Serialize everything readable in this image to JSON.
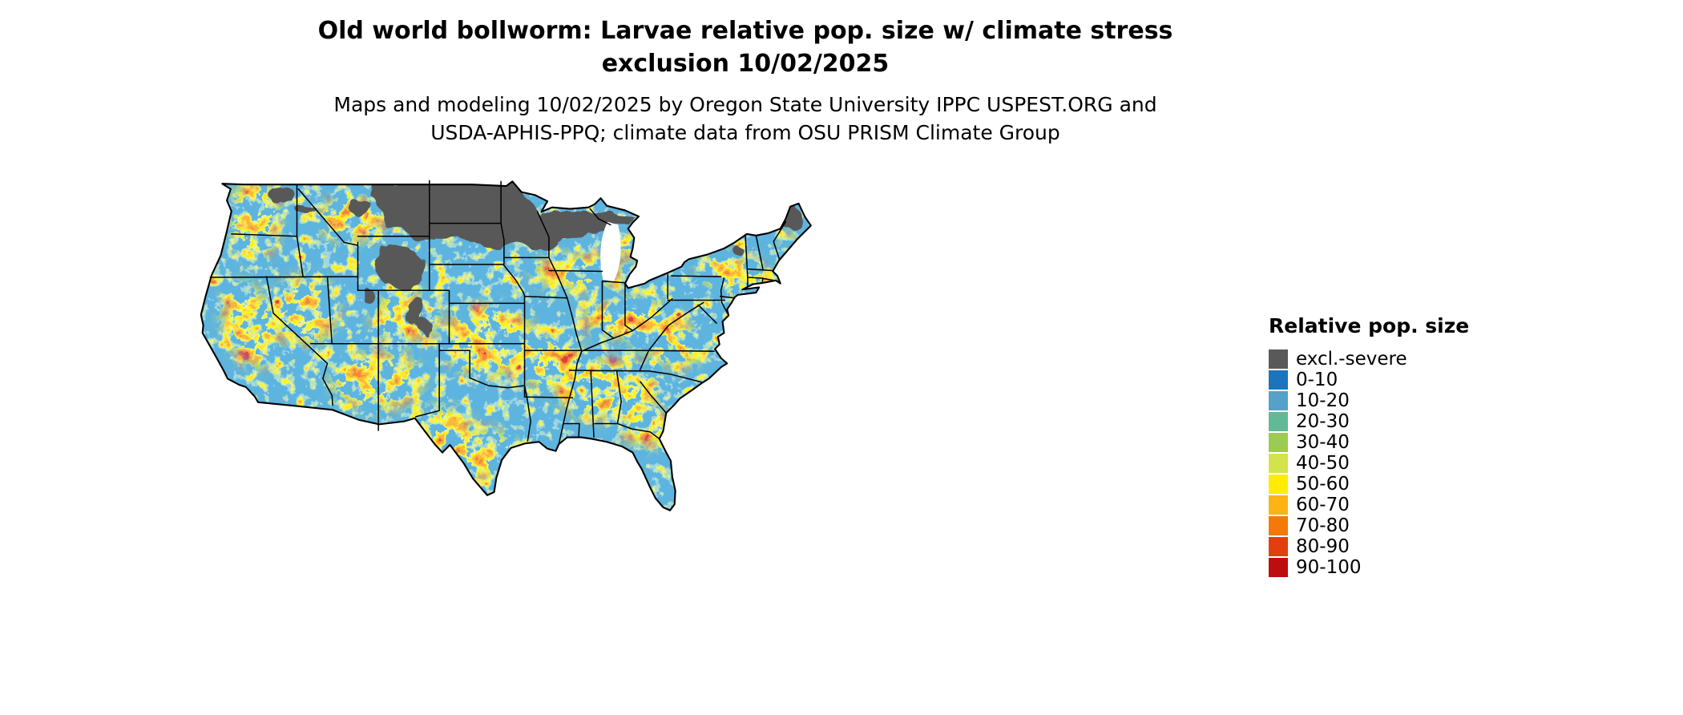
{
  "page": {
    "background": "#ffffff"
  },
  "header": {
    "title_line1": "Old world bollworm: Larvae relative pop. size w/ climate stress",
    "title_line2": "exclusion 10/02/2025",
    "subtitle_line1": "Maps and modeling 10/02/2025 by Oregon State University IPPC USPEST.ORG and",
    "subtitle_line2": "USDA-APHIS-PPQ; climate data from OSU PRISM Climate Group"
  },
  "legend": {
    "title": "Relative pop. size",
    "items": [
      {
        "label": "excl.-severe",
        "color": "#595959"
      },
      {
        "label": "0-10",
        "color": "#1C75BC"
      },
      {
        "label": "10-20",
        "color": "#55A1C9"
      },
      {
        "label": "20-30",
        "color": "#62B995"
      },
      {
        "label": "30-40",
        "color": "#9CCB51"
      },
      {
        "label": "40-50",
        "color": "#D3E34B"
      },
      {
        "label": "50-60",
        "color": "#FFEC00"
      },
      {
        "label": "60-70",
        "color": "#FCB316"
      },
      {
        "label": "70-80",
        "color": "#F4790B"
      },
      {
        "label": "80-90",
        "color": "#E23F0E"
      },
      {
        "label": "90-100",
        "color": "#BD0D0D"
      }
    ]
  }
}
